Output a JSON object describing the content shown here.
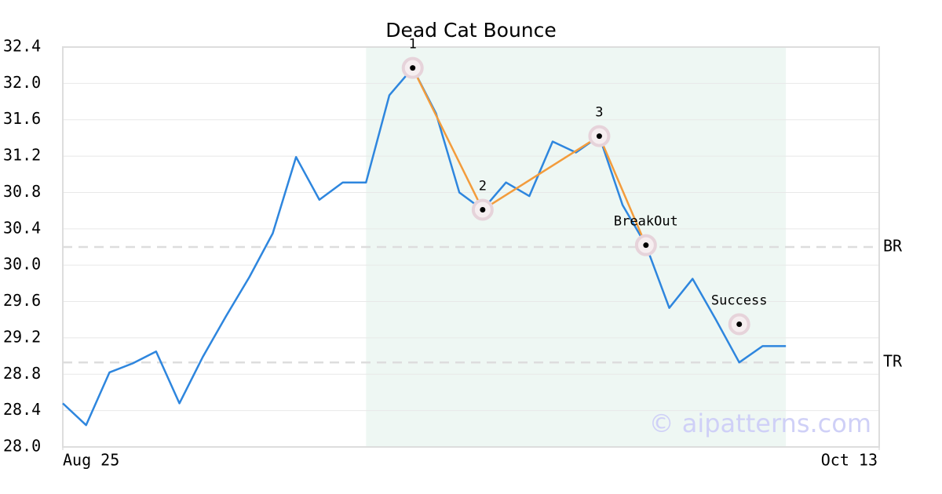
{
  "chart_data": {
    "type": "line",
    "title": "Dead Cat Bounce",
    "x": [
      0,
      1,
      2,
      3,
      4,
      5,
      6,
      7,
      8,
      9,
      10,
      11,
      12,
      13,
      14,
      15,
      16,
      17,
      18,
      19,
      20,
      21,
      22,
      23,
      24,
      25,
      26,
      27,
      28,
      29,
      30,
      31
    ],
    "series": [
      {
        "color": "#2e86de",
        "values": [
          28.48,
          28.24,
          28.82,
          28.92,
          29.05,
          28.48,
          28.99,
          29.44,
          29.87,
          30.35,
          31.19,
          30.72,
          30.91,
          30.91,
          31.87,
          32.17,
          31.67,
          30.8,
          30.61,
          30.91,
          30.76,
          31.36,
          31.24,
          31.42,
          30.66,
          30.22,
          29.53,
          29.85,
          29.4,
          28.93,
          29.11,
          29.11
        ]
      }
    ],
    "xlim": [
      0,
      35
    ],
    "xticks": [
      {
        "value": 0,
        "label": "Aug 25"
      },
      {
        "value": 35,
        "label": "Oct 13"
      }
    ],
    "ylim": [
      28,
      32.4
    ],
    "yticks": [
      {
        "value": 28,
        "label": "28.0"
      },
      28.4,
      28.8,
      29.2,
      29.6,
      {
        "value": 30,
        "label": "30.0"
      },
      30.4,
      30.8,
      31.2,
      31.6,
      {
        "value": 32,
        "label": "32.0"
      },
      32.4
    ],
    "grid": true,
    "shaded_span": [
      13,
      31
    ],
    "shade_color": "#eef7f3",
    "pattern": {
      "color": "#f39c3c",
      "x": [
        15,
        18,
        23,
        25
      ],
      "values": [
        32.17,
        30.61,
        31.42,
        30.22
      ]
    },
    "annotations": [
      {
        "label": "1",
        "x": 15,
        "y": 32.17
      },
      {
        "label": "2",
        "x": 18,
        "y": 30.61
      },
      {
        "label": "3",
        "x": 23,
        "y": 31.42
      },
      {
        "label": "BreakOut",
        "x": 25,
        "y": 30.22
      },
      {
        "label": "Success",
        "x": 29,
        "y": 29.35
      }
    ],
    "levels": [
      {
        "label": "BR",
        "value": 30.2
      },
      {
        "label": "TR",
        "value": 28.93
      }
    ],
    "watermark": "© aipatterns.com"
  }
}
